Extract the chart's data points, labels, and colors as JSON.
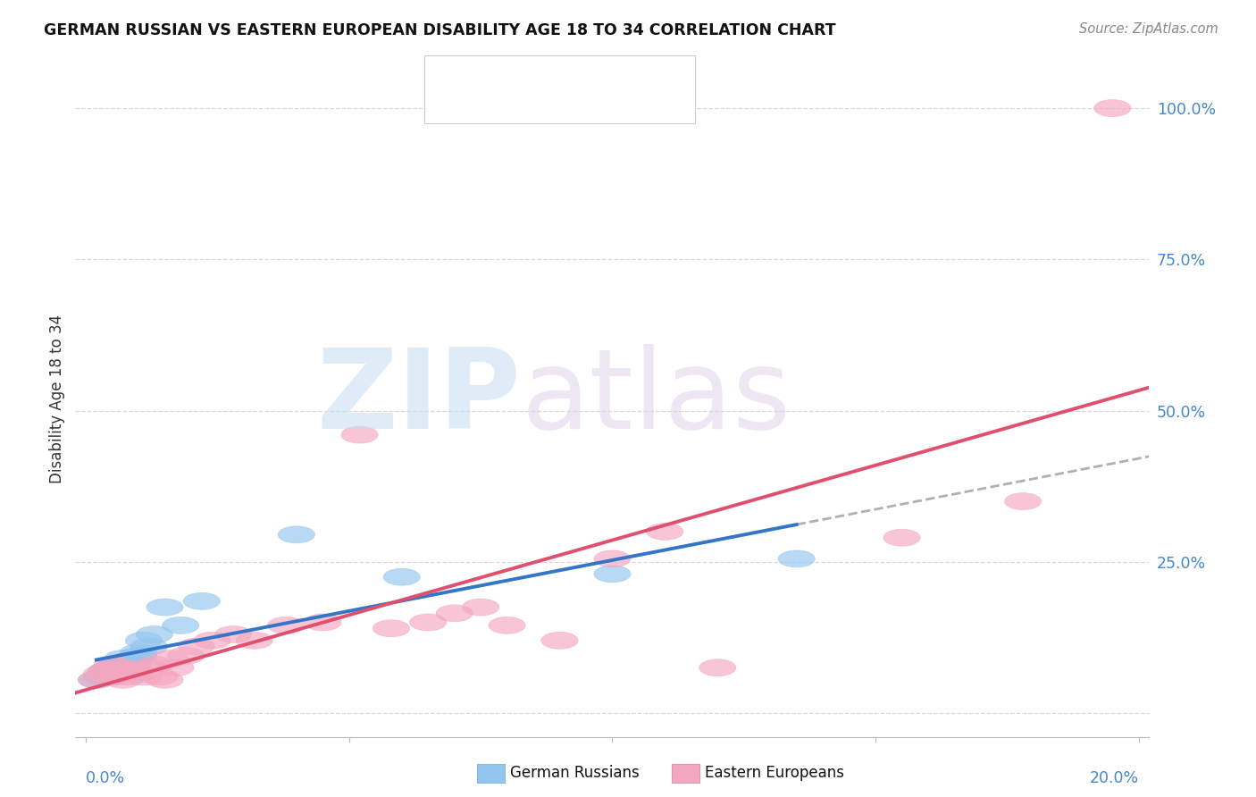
{
  "title": "GERMAN RUSSIAN VS EASTERN EUROPEAN DISABILITY AGE 18 TO 34 CORRELATION CHART",
  "source": "Source: ZipAtlas.com",
  "ylabel": "Disability Age 18 to 34",
  "ytick_positions": [
    0.0,
    0.25,
    0.5,
    0.75,
    1.0
  ],
  "ytick_labels": [
    "",
    "25.0%",
    "50.0%",
    "75.0%",
    "100.0%"
  ],
  "xlim": [
    -0.002,
    0.202
  ],
  "ylim": [
    -0.04,
    1.08
  ],
  "blue_color": "#93C6EE",
  "pink_color": "#F4A7C0",
  "blue_line_color": "#3575C8",
  "pink_line_color": "#E0506E",
  "dash_color": "#B0B0B0",
  "grid_color": "#D8D8D8",
  "right_tick_color": "#4488CC",
  "german_russian_x": [
    0.002,
    0.003,
    0.004,
    0.004,
    0.005,
    0.005,
    0.006,
    0.006,
    0.006,
    0.007,
    0.007,
    0.008,
    0.009,
    0.009,
    0.01,
    0.01,
    0.011,
    0.012,
    0.013,
    0.015,
    0.018,
    0.022,
    0.04,
    0.06,
    0.1,
    0.135
  ],
  "german_russian_y": [
    0.055,
    0.06,
    0.065,
    0.07,
    0.06,
    0.075,
    0.065,
    0.07,
    0.08,
    0.075,
    0.09,
    0.085,
    0.09,
    0.08,
    0.095,
    0.1,
    0.12,
    0.11,
    0.13,
    0.175,
    0.145,
    0.185,
    0.295,
    0.225,
    0.23,
    0.255
  ],
  "eastern_european_x": [
    0.002,
    0.003,
    0.004,
    0.005,
    0.005,
    0.006,
    0.007,
    0.007,
    0.008,
    0.009,
    0.01,
    0.011,
    0.012,
    0.013,
    0.014,
    0.015,
    0.016,
    0.017,
    0.019,
    0.021,
    0.024,
    0.028,
    0.032,
    0.038,
    0.045,
    0.052,
    0.058,
    0.065,
    0.07,
    0.075,
    0.08,
    0.09,
    0.1,
    0.11,
    0.12,
    0.155,
    0.178,
    0.195
  ],
  "eastern_european_y": [
    0.055,
    0.065,
    0.07,
    0.06,
    0.08,
    0.065,
    0.055,
    0.075,
    0.06,
    0.07,
    0.065,
    0.06,
    0.075,
    0.08,
    0.06,
    0.055,
    0.09,
    0.075,
    0.095,
    0.11,
    0.12,
    0.13,
    0.12,
    0.145,
    0.15,
    0.46,
    0.14,
    0.15,
    0.165,
    0.175,
    0.145,
    0.12,
    0.255,
    0.3,
    0.075,
    0.29,
    0.35,
    1.0
  ]
}
